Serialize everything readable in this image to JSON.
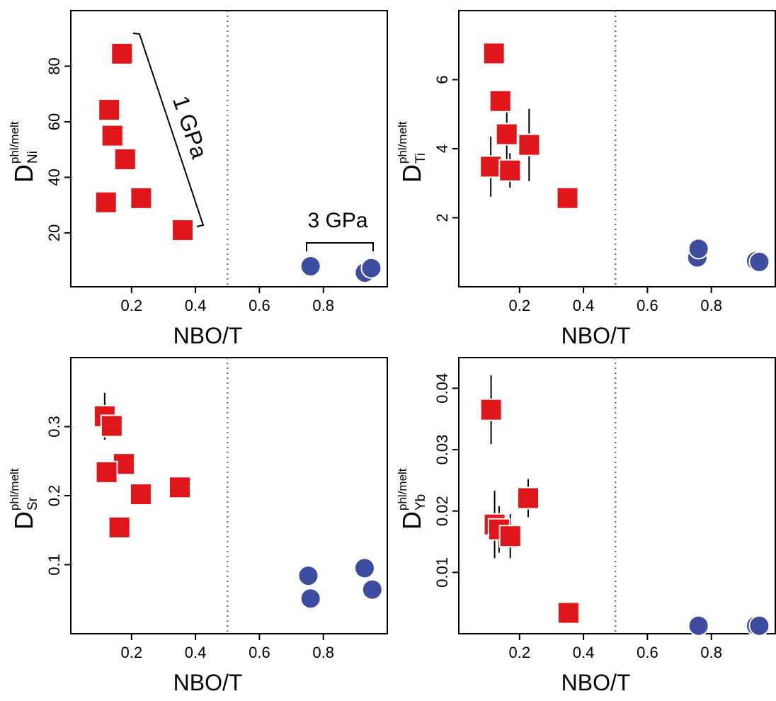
{
  "chart_data": [
    {
      "type": "scatter",
      "x_label": "NBO/T",
      "y_label": {
        "main": "D",
        "superscript": "phl/melt",
        "subscript": "Ni"
      },
      "xlim": [
        0.01,
        1.0
      ],
      "xticks": [
        0.2,
        0.4,
        0.6,
        0.8
      ],
      "ylim": [
        0.6,
        100
      ],
      "yticks": [
        20,
        40,
        60,
        80
      ],
      "vline": 0.5,
      "annotations": [
        "1 GPa",
        "3 GPa"
      ],
      "series": [
        {
          "color": "#e0161b",
          "marker": "square",
          "x": [
            0.17,
            0.13,
            0.14,
            0.18,
            0.12,
            0.23,
            0.36
          ],
          "values": [
            84.5,
            64.3,
            55,
            46.5,
            31,
            32.5,
            21
          ]
        },
        {
          "color": "#3c4c9f",
          "marker": "circle",
          "x": [
            0.76,
            0.93,
            0.95
          ],
          "values": [
            8,
            5.7,
            7.3
          ]
        }
      ]
    },
    {
      "type": "scatter",
      "x_label": "NBO/T",
      "y_label": {
        "main": "D",
        "superscript": "phl/melt",
        "subscript": "Ti"
      },
      "xlim": [
        0.01,
        1.0
      ],
      "xticks": [
        0.2,
        0.4,
        0.6,
        0.8
      ],
      "ylim": [
        0,
        8
      ],
      "yticks": [
        2,
        4,
        6
      ],
      "vline": 0.5,
      "series": [
        {
          "color": "#e0161b",
          "marker": "square",
          "x": [
            0.12,
            0.14,
            0.16,
            0.11,
            0.17,
            0.23,
            0.35
          ],
          "values": [
            6.76,
            5.38,
            4.42,
            3.48,
            3.37,
            4.11,
            2.57
          ],
          "errors": [
            null,
            null,
            0.72,
            0.87,
            0.5,
            1.05,
            null
          ]
        },
        {
          "color": "#3c4c9f",
          "marker": "circle",
          "x": [
            0.756,
            0.76,
            0.94,
            0.95
          ],
          "values": [
            0.85,
            1.1,
            0.75,
            0.72
          ]
        }
      ]
    },
    {
      "type": "scatter",
      "x_label": "NBO/T",
      "y_label": {
        "main": "D",
        "superscript": "phl/melt",
        "subscript": "Sr"
      },
      "xlim": [
        0.01,
        1.0
      ],
      "xticks": [
        0.2,
        0.4,
        0.6,
        0.8
      ],
      "ylim": [
        0,
        0.4
      ],
      "yticks": [
        0.1,
        0.2,
        0.3
      ],
      "vline": 0.5,
      "series": [
        {
          "color": "#e0161b",
          "marker": "square",
          "x": [
            0.116,
            0.138,
            0.176,
            0.122,
            0.229,
            0.162,
            0.351
          ],
          "values": [
            0.315,
            0.301,
            0.246,
            0.234,
            0.202,
            0.154,
            0.212
          ],
          "errors": [
            0.034,
            null,
            null,
            null,
            null,
            null,
            null
          ]
        },
        {
          "color": "#3c4c9f",
          "marker": "circle",
          "x": [
            0.753,
            0.76,
            0.929,
            0.953
          ],
          "values": [
            0.084,
            0.051,
            0.095,
            0.064
          ]
        }
      ]
    },
    {
      "type": "scatter",
      "x_label": "NBO/T",
      "y_label": {
        "main": "D",
        "superscript": "phl/melt",
        "subscript": "Yb"
      },
      "xlim": [
        0.01,
        1.0
      ],
      "xticks": [
        0.2,
        0.4,
        0.6,
        0.8
      ],
      "ylim": [
        0,
        0.045
      ],
      "yticks": [
        0.01,
        0.02,
        0.03,
        0.04
      ],
      "vline": 0.5,
      "series": [
        {
          "color": "#e0161b",
          "marker": "square",
          "x": [
            0.111,
            0.122,
            0.136,
            0.171,
            0.227,
            0.353
          ],
          "values": [
            0.0365,
            0.0178,
            0.017,
            0.0159,
            0.0221,
            0.0034
          ],
          "errors": [
            0.0056,
            0.0055,
            0.0038,
            0.0036,
            0.0031,
            null
          ]
        },
        {
          "color": "#3c4c9f",
          "marker": "circle",
          "x": [
            0.76,
            0.94,
            0.95
          ],
          "values": [
            0.0013,
            0.0013,
            0.0013
          ]
        }
      ]
    }
  ]
}
